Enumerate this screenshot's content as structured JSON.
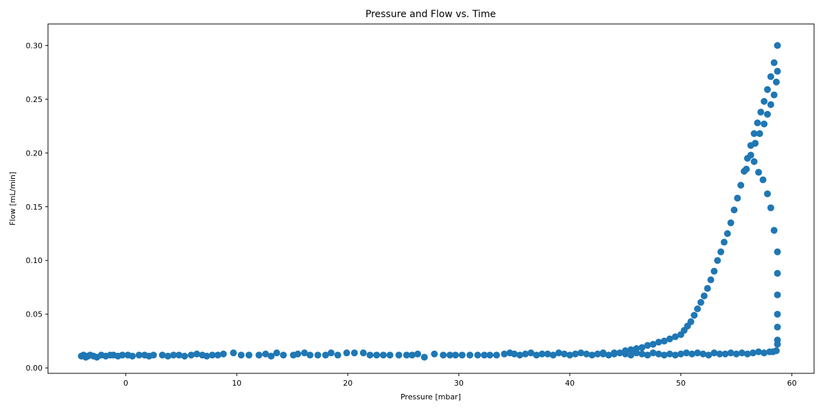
{
  "chart_data": {
    "type": "scatter",
    "title": "Pressure and Flow vs. Time",
    "xlabel": "Pressure [mbar]",
    "ylabel": "Flow [mL/min]",
    "xlim": [
      -7,
      62
    ],
    "ylim": [
      -0.005,
      0.32
    ],
    "xticks": [
      0,
      10,
      20,
      30,
      40,
      50,
      60
    ],
    "yticks": [
      0.0,
      0.05,
      0.1,
      0.15,
      0.2,
      0.25,
      0.3
    ],
    "ytick_labels": [
      "0.00",
      "0.05",
      "0.10",
      "0.15",
      "0.20",
      "0.25",
      "0.30"
    ],
    "grid": false,
    "legend": "none",
    "marker_color": "#1f77b4",
    "series": [
      {
        "x": [
          -4.0,
          -3.8,
          -3.6,
          -3.4,
          -3.2,
          -2.9,
          -2.6,
          -2.2,
          -1.8,
          -1.4,
          -1.1,
          -0.7,
          -0.3,
          0.2,
          0.6,
          1.2,
          1.7,
          2.1,
          2.5,
          3.3,
          3.8,
          4.3,
          4.8,
          5.3,
          5.9,
          6.4,
          6.9,
          7.3,
          7.8,
          8.3,
          8.8,
          9.7,
          10.4,
          11.1,
          12.0,
          12.6,
          13.1,
          13.6,
          14.2,
          15.1,
          15.5,
          16.1,
          16.6,
          17.3,
          18.0,
          18.5,
          19.1,
          19.9,
          20.6,
          21.4,
          22.0,
          22.6,
          23.2,
          23.8,
          24.6,
          25.3,
          25.8,
          26.3,
          26.9,
          27.8,
          28.6,
          29.2,
          29.7,
          30.3,
          31.0,
          31.7,
          32.3,
          32.8,
          33.4,
          34.1,
          34.6
        ],
        "y": [
          0.011,
          0.012,
          0.01,
          0.011,
          0.012,
          0.011,
          0.01,
          0.012,
          0.011,
          0.012,
          0.012,
          0.011,
          0.012,
          0.012,
          0.011,
          0.012,
          0.012,
          0.011,
          0.012,
          0.012,
          0.011,
          0.012,
          0.012,
          0.011,
          0.012,
          0.013,
          0.012,
          0.011,
          0.012,
          0.012,
          0.013,
          0.014,
          0.012,
          0.012,
          0.012,
          0.013,
          0.011,
          0.014,
          0.012,
          0.012,
          0.013,
          0.014,
          0.012,
          0.012,
          0.012,
          0.014,
          0.012,
          0.014,
          0.014,
          0.014,
          0.012,
          0.012,
          0.012,
          0.012,
          0.012,
          0.012,
          0.012,
          0.013,
          0.01,
          0.013,
          0.012,
          0.012,
          0.012,
          0.012,
          0.012,
          0.012,
          0.012,
          0.012,
          0.012,
          0.013,
          0.014
        ]
      },
      {
        "x": [
          35.0,
          35.5,
          36.0,
          36.5,
          37.0,
          37.5,
          38.0,
          38.5,
          39.0,
          39.5,
          40.0,
          40.5,
          41.0,
          41.5,
          42.0,
          42.5,
          43.0,
          43.5,
          44.0,
          44.5,
          45.0,
          45.5,
          46.0,
          46.5,
          47.0,
          47.5,
          48.0,
          48.5,
          49.0,
          49.5,
          50.0,
          50.5,
          51.0,
          51.5,
          52.0,
          52.5,
          53.0,
          53.5,
          54.0,
          54.5,
          55.0,
          55.5,
          56.0,
          56.5,
          57.0,
          57.5,
          58.0,
          58.3,
          58.6
        ],
        "y": [
          0.013,
          0.012,
          0.013,
          0.014,
          0.012,
          0.013,
          0.013,
          0.012,
          0.014,
          0.013,
          0.012,
          0.013,
          0.014,
          0.013,
          0.012,
          0.013,
          0.014,
          0.012,
          0.013,
          0.014,
          0.013,
          0.012,
          0.014,
          0.013,
          0.012,
          0.014,
          0.013,
          0.012,
          0.013,
          0.012,
          0.013,
          0.014,
          0.013,
          0.014,
          0.013,
          0.012,
          0.014,
          0.013,
          0.013,
          0.014,
          0.013,
          0.014,
          0.013,
          0.014,
          0.015,
          0.014,
          0.015,
          0.015,
          0.016
        ]
      },
      {
        "x": [
          43.0,
          44.0,
          45.0,
          45.5,
          46.0,
          46.5,
          47.0,
          47.5,
          48.0,
          48.5,
          49.0,
          49.5,
          50.0,
          50.3,
          50.6,
          50.9,
          51.2,
          51.5,
          51.8,
          52.1,
          52.4,
          52.7,
          53.0,
          53.3,
          53.6,
          53.9,
          54.2,
          54.5,
          54.8,
          55.1,
          55.4,
          55.7,
          56.0,
          56.3,
          56.6,
          56.9,
          57.2,
          57.5,
          57.8,
          58.1,
          58.4,
          58.7
        ],
        "y": [
          0.013,
          0.014,
          0.016,
          0.017,
          0.018,
          0.019,
          0.021,
          0.022,
          0.024,
          0.025,
          0.027,
          0.029,
          0.031,
          0.035,
          0.039,
          0.043,
          0.049,
          0.055,
          0.061,
          0.067,
          0.074,
          0.082,
          0.09,
          0.1,
          0.108,
          0.117,
          0.125,
          0.135,
          0.147,
          0.158,
          0.17,
          0.183,
          0.195,
          0.207,
          0.218,
          0.228,
          0.238,
          0.248,
          0.259,
          0.271,
          0.284,
          0.3
        ]
      },
      {
        "x": [
          58.7,
          58.6,
          58.4,
          58.1,
          57.8,
          57.5,
          57.1,
          56.7,
          56.3,
          55.9
        ],
        "y": [
          0.276,
          0.266,
          0.254,
          0.245,
          0.236,
          0.227,
          0.218,
          0.209,
          0.198,
          0.185
        ]
      },
      {
        "x": [
          58.7,
          58.7,
          58.7,
          58.7,
          58.7,
          58.7,
          58.7,
          58.4,
          58.1,
          57.8,
          57.4,
          57.0,
          56.6
        ],
        "y": [
          0.022,
          0.026,
          0.038,
          0.05,
          0.068,
          0.088,
          0.108,
          0.128,
          0.149,
          0.162,
          0.175,
          0.182,
          0.192
        ]
      }
    ]
  }
}
